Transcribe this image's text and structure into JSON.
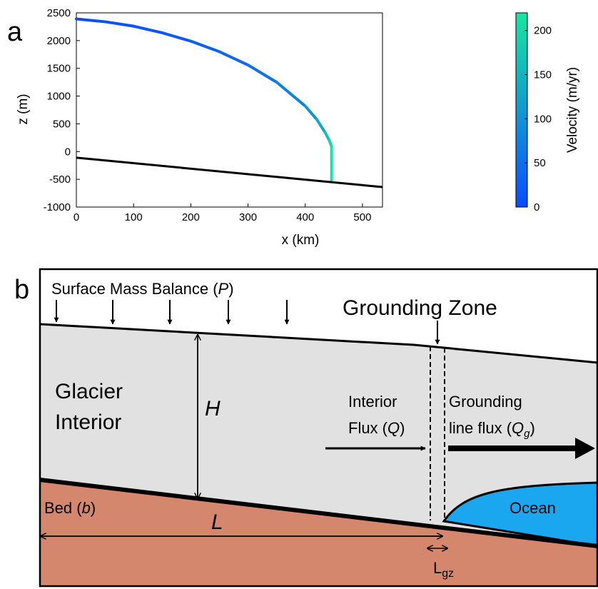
{
  "panel_a": {
    "letter": "a",
    "chart_data": {
      "type": "line",
      "xlabel": "x (km)",
      "ylabel": "z (m)",
      "xlim": [
        0,
        535
      ],
      "ylim": [
        -1000,
        2500
      ],
      "x_ticks": [
        0,
        100,
        200,
        300,
        400,
        500
      ],
      "y_ticks": [
        -1000,
        -500,
        0,
        500,
        1000,
        1500,
        2000,
        2500
      ],
      "grid": false,
      "colorbar": {
        "label": "Velocity (m/yr)",
        "range": [
          0,
          220
        ],
        "ticks": [
          0,
          50,
          100,
          150,
          200
        ],
        "color_low": "#0a4dff",
        "color_high": "#19e6a0"
      },
      "series": [
        {
          "role": "ice-surface",
          "x": [
            0,
            50,
            100,
            150,
            200,
            250,
            300,
            350,
            400,
            420,
            435,
            442,
            446
          ],
          "y": [
            2390,
            2340,
            2260,
            2140,
            1990,
            1800,
            1560,
            1250,
            820,
            580,
            340,
            200,
            90
          ],
          "velocity": [
            2,
            5,
            10,
            15,
            22,
            32,
            45,
            62,
            90,
            115,
            150,
            180,
            210
          ]
        },
        {
          "role": "calving-front",
          "x": [
            446,
            446
          ],
          "y": [
            90,
            -525
          ],
          "velocity": [
            215,
            220
          ]
        },
        {
          "role": "bed",
          "x": [
            0,
            535
          ],
          "y": [
            -110,
            -640
          ],
          "color": "#000000"
        }
      ]
    }
  },
  "panel_b": {
    "letter": "b",
    "smb_label_prefix": "Surface Mass Balance (",
    "smb_label_var": "P",
    "smb_label_suffix": ")",
    "grounding_zone_label": "Grounding Zone",
    "glacier_interior_line1": "Glacier",
    "glacier_interior_line2": "Interior",
    "thickness_label": "H",
    "interior_flux_line1": "Interior",
    "interior_flux_line2_prefix": "Flux (",
    "interior_flux_var": "Q",
    "interior_flux_line2_suffix": ")",
    "grounding_flux_line1": "Grounding",
    "grounding_flux_line2_prefix": "line flux (",
    "grounding_flux_var": "Q",
    "grounding_flux_sub": "g",
    "grounding_flux_line2_suffix": ")",
    "bed_label_prefix": "Bed (",
    "bed_label_var": "b",
    "bed_label_suffix": ")",
    "length_label": "L",
    "ocean_label": "Ocean",
    "gz_length_label": "L",
    "gz_length_sub": "gz",
    "colors": {
      "ice": "#e1e1e1",
      "bed": "#d4876c",
      "ocean": "#1aa7f0",
      "line": "#000000"
    }
  }
}
